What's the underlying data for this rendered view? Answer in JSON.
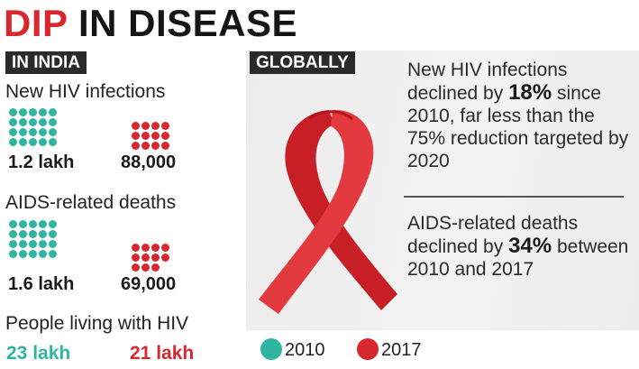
{
  "title": {
    "part_red": "DIP",
    "part_black": "IN DISEASE"
  },
  "india": {
    "tag": "IN INDIA",
    "new_infections": {
      "label": "New HIV infections",
      "val_2010": "1.2 lakh",
      "val_2017": "88,000"
    },
    "aids_deaths": {
      "label": "AIDS-related deaths",
      "val_2010": "1.6 lakh",
      "val_2017": "69,000"
    },
    "living_with_hiv": {
      "label": "People living with HIV",
      "val_2010": "23 lakh",
      "val_2017": "21 lakh"
    }
  },
  "global": {
    "tag": "GLOBALLY",
    "infections_text": {
      "pre": "New HIV infections declined by ",
      "highlight": "18%",
      "post": " since 2010, far less than the 75% reduction targeted by 2020"
    },
    "deaths_text": {
      "pre": "AIDS-related deaths declined by ",
      "highlight": "34%",
      "post": " between 2010 and 2017"
    }
  },
  "legend": [
    {
      "label": "2010",
      "color": "#2fb5a0"
    },
    {
      "label": "2017",
      "color": "#d7282f"
    }
  ],
  "chart_data": {
    "type": "table",
    "title": "DIP IN DISEASE",
    "region": "India",
    "series_names": [
      "2010",
      "2017"
    ],
    "rows": [
      {
        "metric": "New HIV infections",
        "2010": "1.2 lakh",
        "2017": "88,000",
        "values_numeric": [
          120000,
          88000
        ],
        "dots": [
          20,
          12
        ]
      },
      {
        "metric": "AIDS-related deaths",
        "2010": "1.6 lakh",
        "2017": "69,000",
        "values_numeric": [
          160000,
          69000
        ],
        "dots": [
          20,
          11
        ]
      },
      {
        "metric": "People living with HIV",
        "2010": "23 lakh",
        "2017": "21 lakh",
        "values_numeric": [
          2300000,
          2100000
        ]
      }
    ],
    "global": {
      "new_infections_decline_pct": 18,
      "target_reduction_pct": 75,
      "aids_deaths_decline_pct": 34
    }
  }
}
